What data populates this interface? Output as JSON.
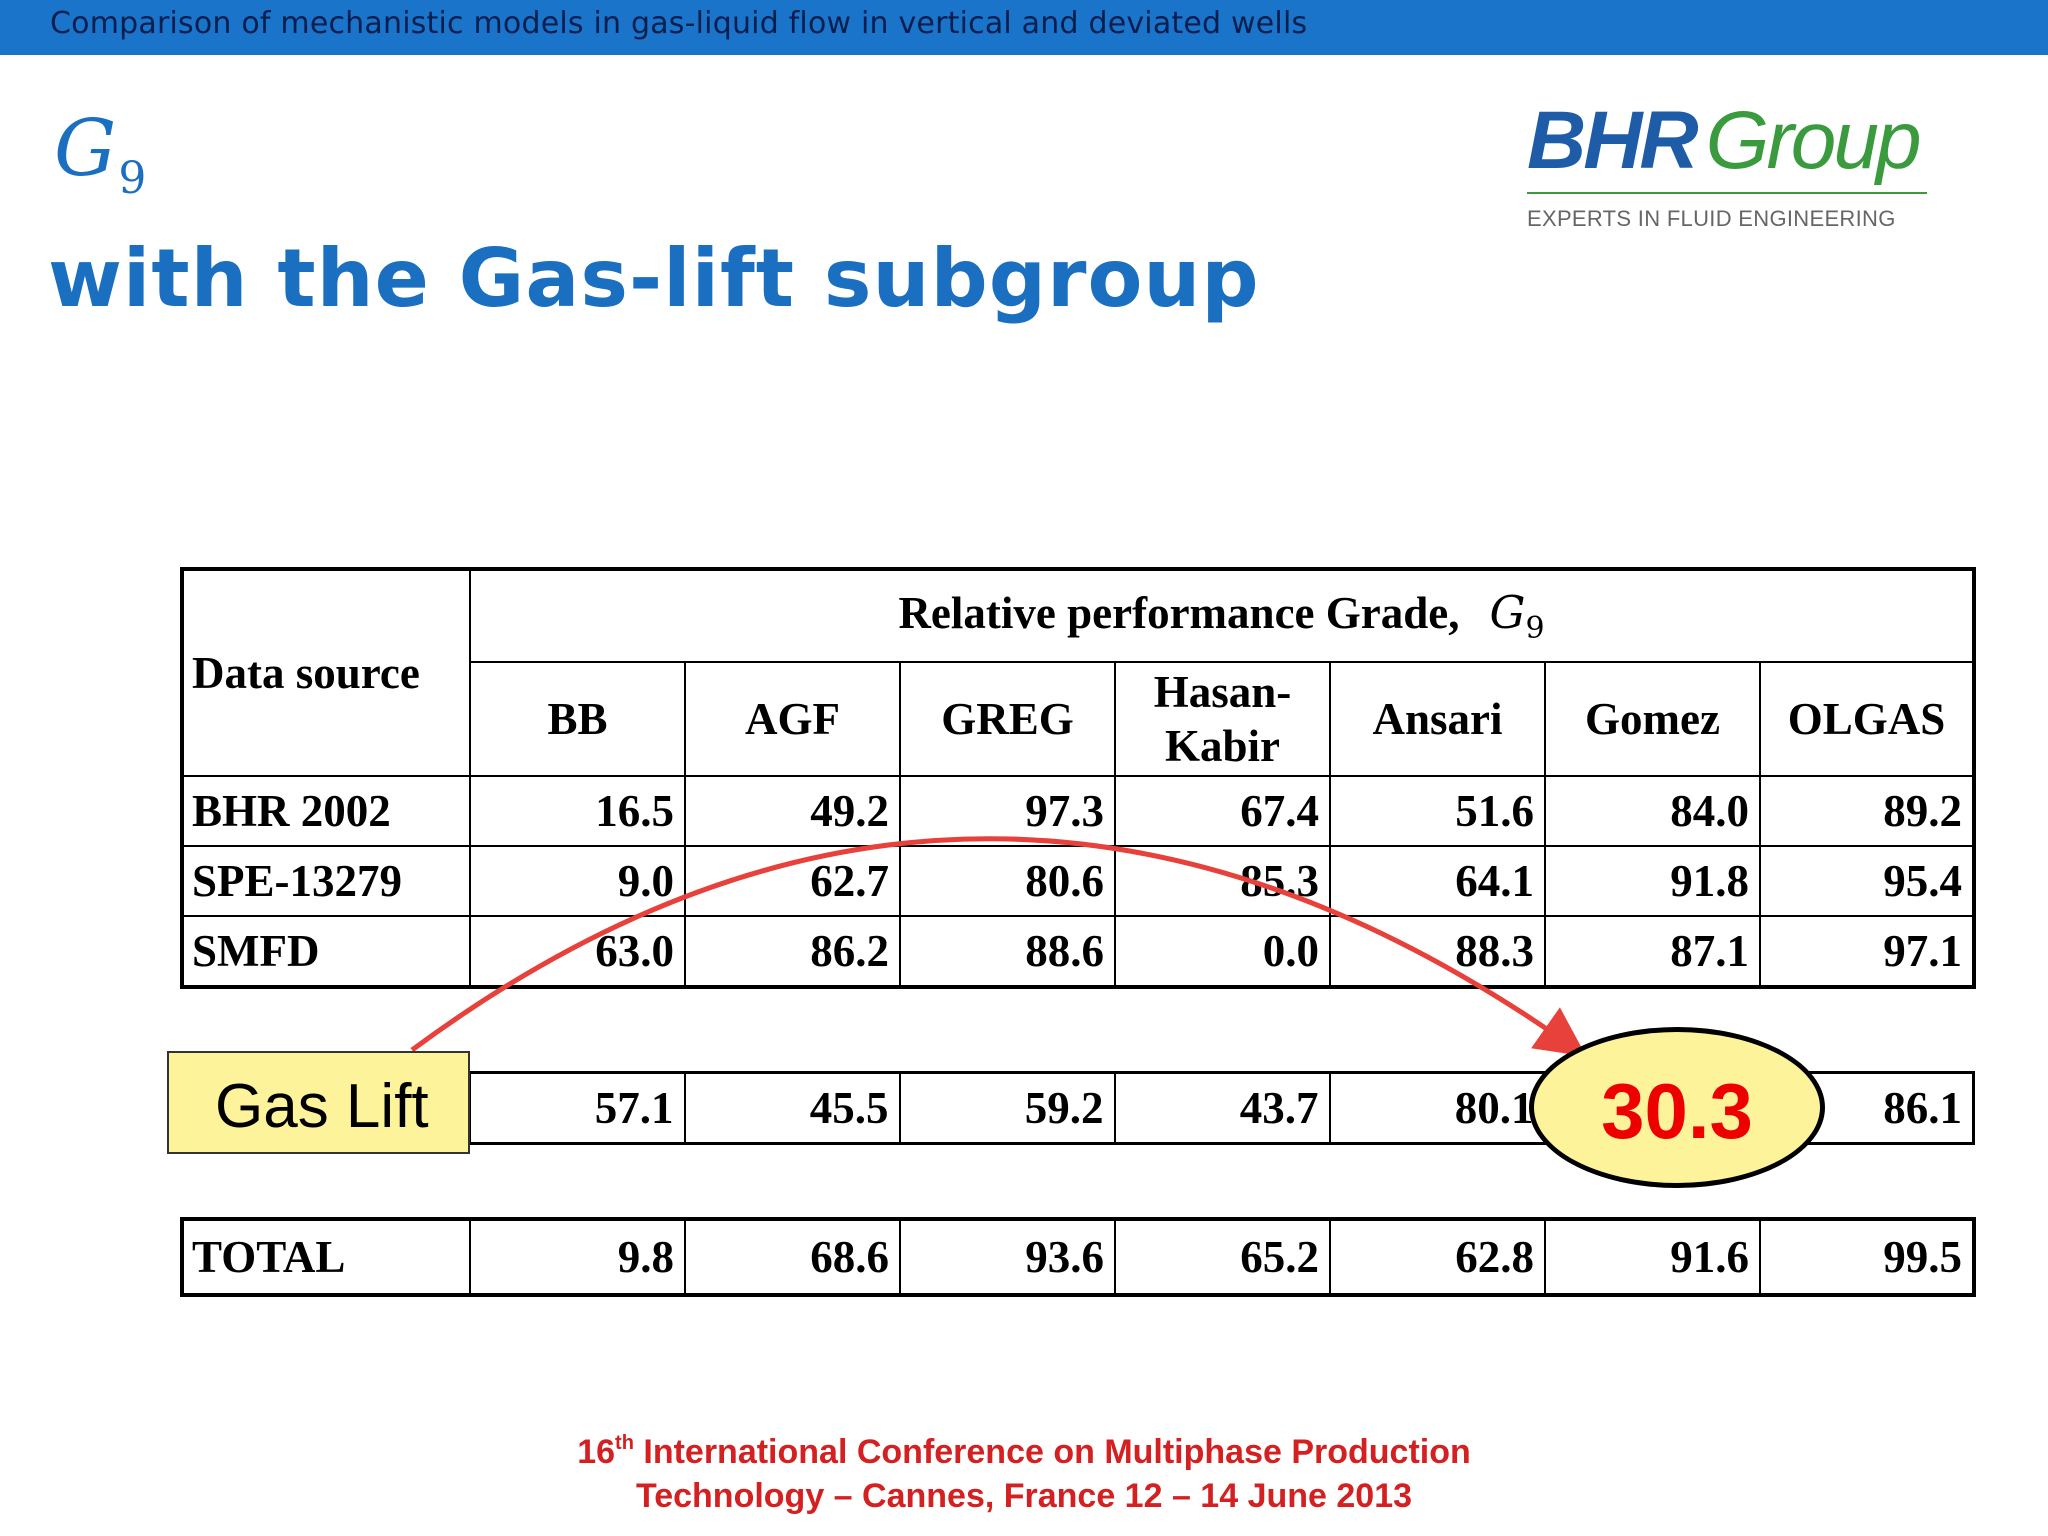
{
  "header": {
    "running_title": "Comparison of mechanistic models in gas-liquid flow in vertical and deviated wells",
    "symbol": "G",
    "symbol_subscript": "9",
    "title": "with the Gas-lift subgroup"
  },
  "logo": {
    "brand_bold": "BHR",
    "brand_light": "Group",
    "tagline": "EXPERTS IN FLUID ENGINEERING"
  },
  "table": {
    "data_source_header": "Data source",
    "grade_header": "Relative performance Grade,",
    "grade_symbol": "G",
    "grade_subscript": "9",
    "columns": [
      "BB",
      "AGF",
      "GREG",
      "Hasan-",
      "Ansari",
      "Gomez",
      "OLGAS"
    ],
    "column_line2": {
      "hasan": "Kabir"
    },
    "rows": [
      {
        "source": "BHR 2002",
        "values": [
          "16.5",
          "49.2",
          "97.3",
          "67.4",
          "51.6",
          "84.0",
          "89.2"
        ]
      },
      {
        "source": "SPE-13279",
        "values": [
          "9.0",
          "62.7",
          "80.6",
          "85.3",
          "64.1",
          "91.8",
          "95.4"
        ]
      },
      {
        "source": "SMFD",
        "values": [
          "63.0",
          "86.2",
          "88.6",
          "0.0",
          "88.3",
          "87.1",
          "97.1"
        ]
      }
    ],
    "gas_lift": {
      "label": "Gas Lift",
      "values": [
        "57.1",
        "45.5",
        "59.2",
        "43.7",
        "80.1",
        "",
        "86.1"
      ],
      "highlight_value": "30.3"
    },
    "total": {
      "label": "TOTAL",
      "values": [
        "9.8",
        "68.6",
        "93.6",
        "65.2",
        "62.8",
        "91.6",
        "99.5"
      ]
    }
  },
  "footer": {
    "line1_prefix": "16",
    "line1_sup": "th",
    "line1_rest": " International Conference on Multiphase Production",
    "line2": "Technology – Cannes, France 12 – 14 June 2013"
  },
  "colors": {
    "top_bar": "#1a74c9",
    "title": "#1a6fc0",
    "highlight_fill": "#fdf39a",
    "arrow": "#e8403a",
    "footer_text": "#d42020"
  }
}
